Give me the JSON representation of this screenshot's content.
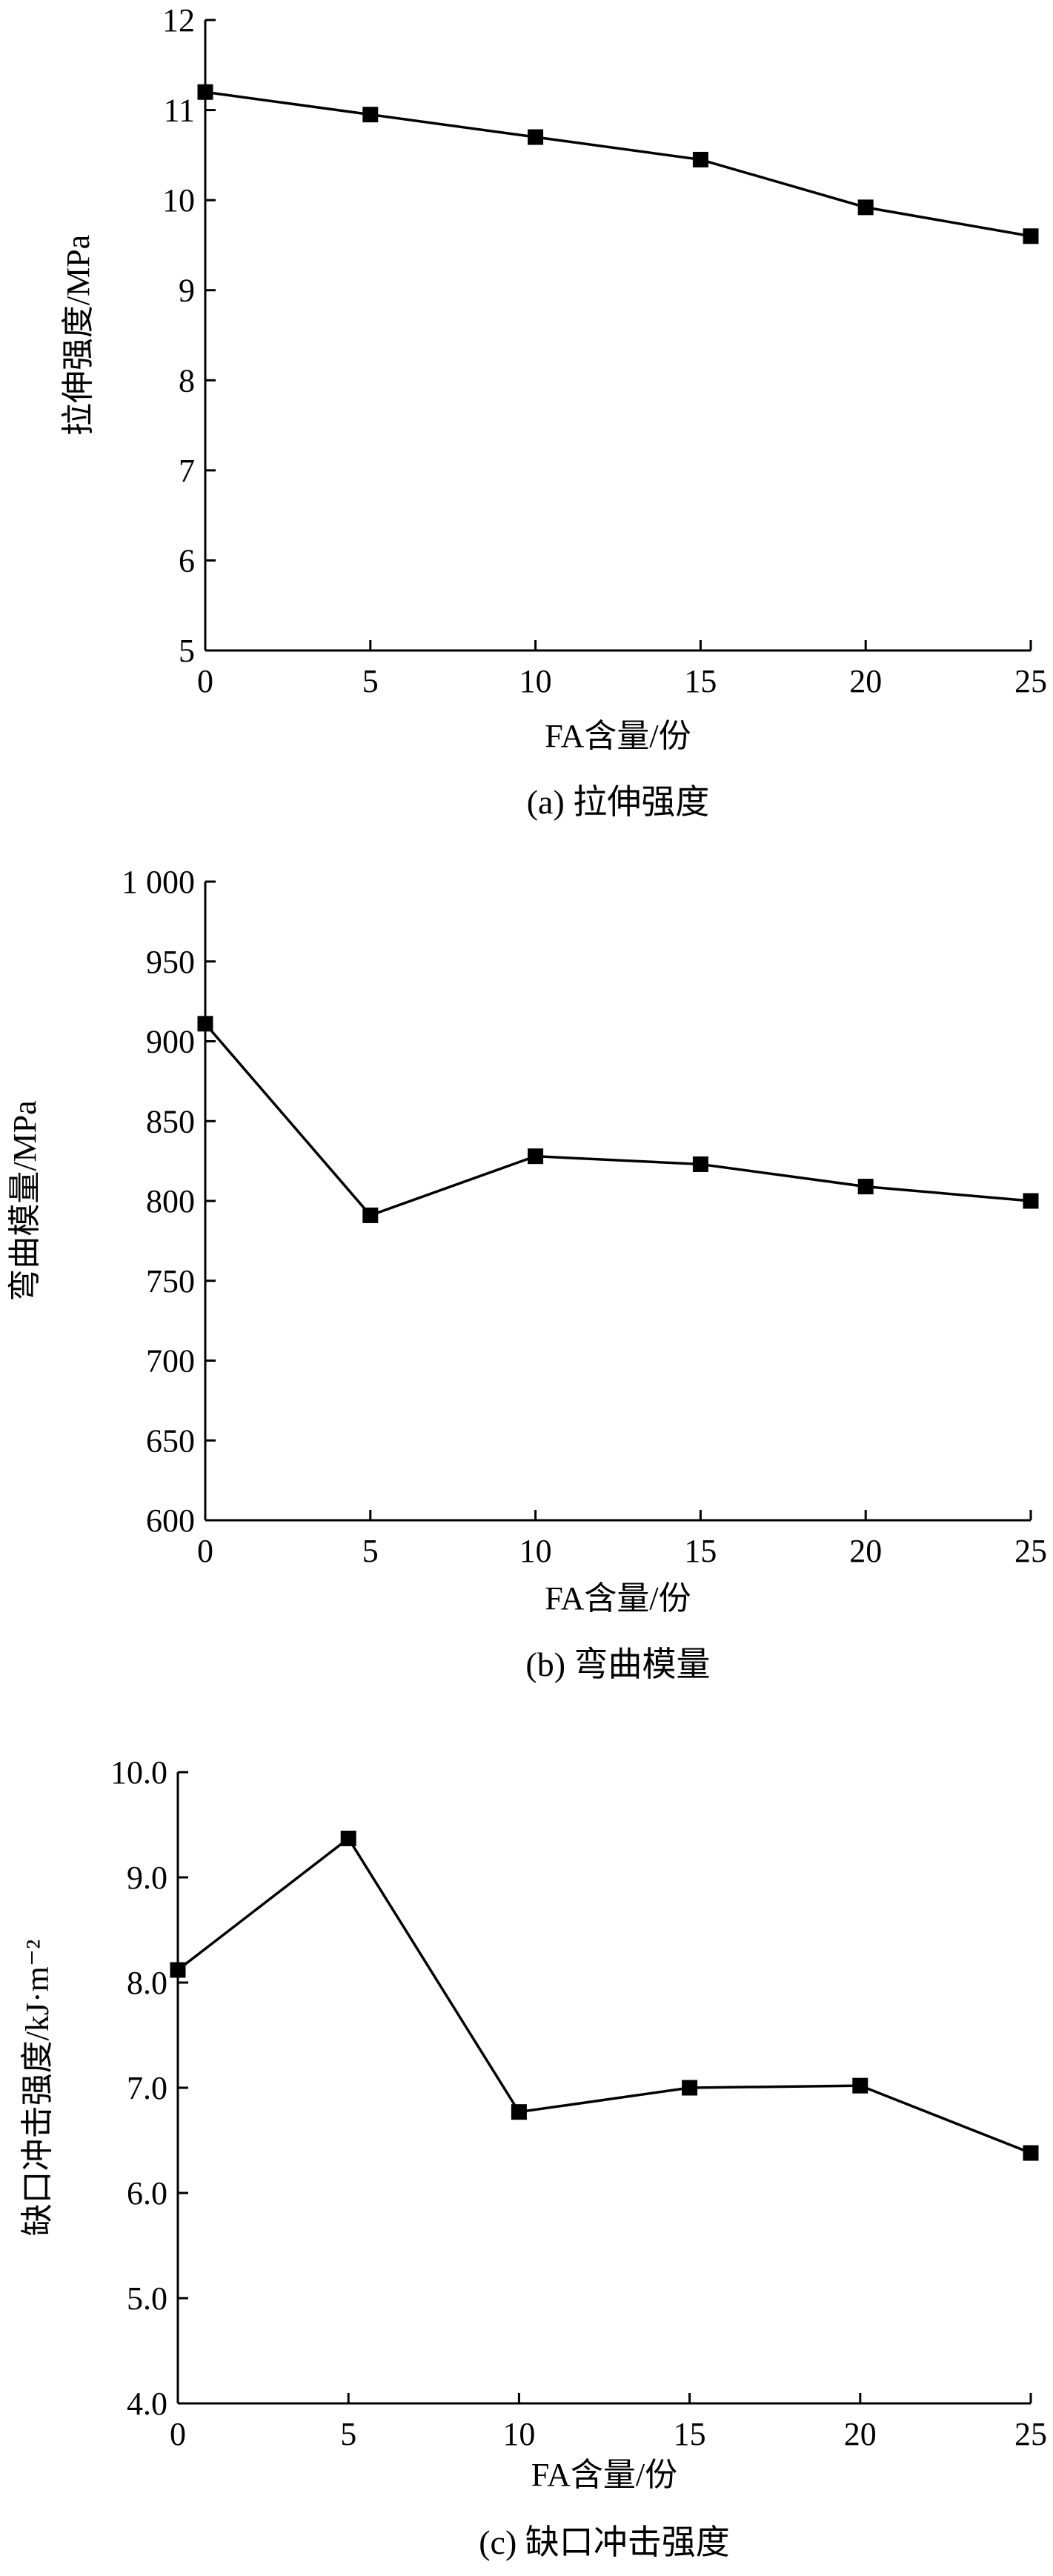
{
  "chart_data": [
    {
      "type": "line",
      "caption": "(a) 拉伸强度",
      "xlabel": "FA含量/份",
      "ylabel": "拉伸强度/MPa",
      "x": [
        0,
        5,
        10,
        15,
        20,
        25
      ],
      "xlim": [
        0,
        25
      ],
      "xticks": [
        "0",
        "5",
        "10",
        "15",
        "20",
        "25"
      ],
      "ylim": [
        5,
        12
      ],
      "yticks": [
        "5",
        "6",
        "7",
        "8",
        "9",
        "10",
        "11",
        "12"
      ],
      "series": [
        {
          "values": [
            11.2,
            10.95,
            10.7,
            10.45,
            9.92,
            9.6
          ]
        }
      ],
      "grid": false,
      "marker": "square"
    },
    {
      "type": "line",
      "caption": "(b) 弯曲模量",
      "xlabel": "FA含量/份",
      "ylabel": "弯曲模量/MPa",
      "x": [
        0,
        5,
        10,
        15,
        20,
        25
      ],
      "xlim": [
        0,
        25
      ],
      "xticks": [
        "0",
        "5",
        "10",
        "15",
        "20",
        "25"
      ],
      "ylim": [
        600,
        1000
      ],
      "yticks": [
        "600",
        "650",
        "700",
        "750",
        "800",
        "850",
        "900",
        "950",
        "1 000"
      ],
      "series": [
        {
          "values": [
            911,
            791,
            828,
            823,
            809,
            800
          ]
        }
      ],
      "grid": false,
      "marker": "square"
    },
    {
      "type": "line",
      "caption": "(c) 缺口冲击强度",
      "xlabel": "FA含量/份",
      "ylabel": "缺口冲击强度/kJ·m⁻²",
      "x": [
        0,
        5,
        10,
        15,
        20,
        25
      ],
      "xlim": [
        0,
        25
      ],
      "xticks": [
        "0",
        "5",
        "10",
        "15",
        "20",
        "25"
      ],
      "ylim": [
        4.0,
        10.0
      ],
      "yticks": [
        "4.0",
        "5.0",
        "6.0",
        "7.0",
        "8.0",
        "9.0",
        "10.0"
      ],
      "series": [
        {
          "values": [
            8.12,
            9.37,
            6.77,
            7.0,
            7.02,
            6.38
          ]
        }
      ],
      "grid": false,
      "marker": "square"
    }
  ]
}
